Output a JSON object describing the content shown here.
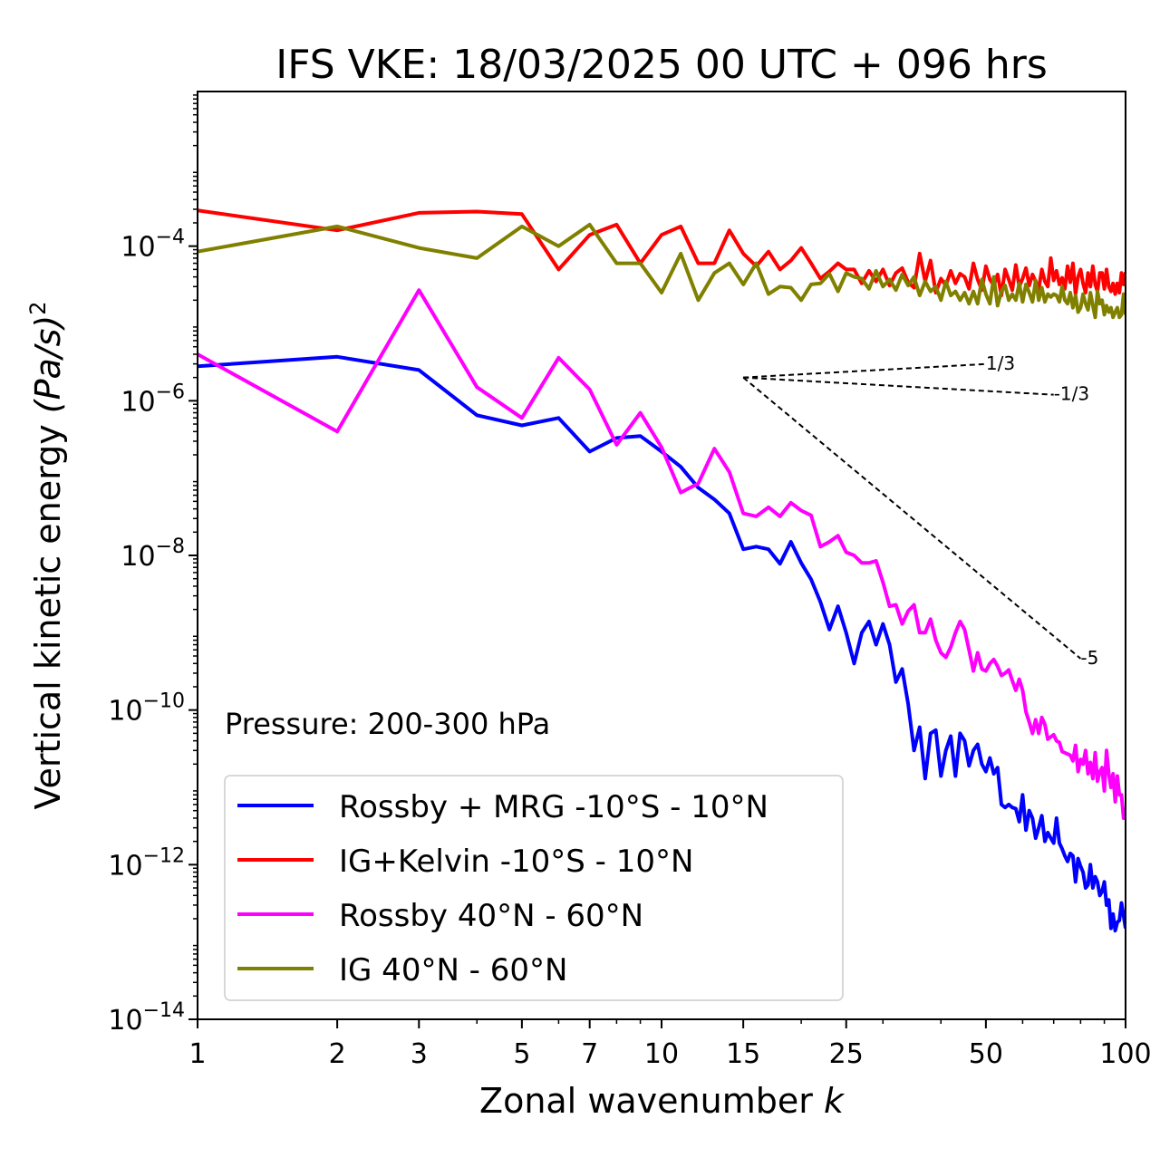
{
  "chart_data": {
    "type": "line",
    "title": "IFS VKE: 18/03/2025 00 UTC + 096 hrs",
    "xlabel": "Zonal wavenumber",
    "xlabel_symbol": "k",
    "ylabel": "Vertical kinetic energy",
    "ylabel_unit": "(Pa/s)",
    "ylabel_exponent": "2",
    "xscale": "log",
    "yscale": "log",
    "xlim": [
      1,
      100
    ],
    "ylim": [
      1e-14,
      0.01
    ],
    "x_ticks": [
      1,
      2,
      3,
      5,
      7,
      10,
      15,
      25,
      50,
      100
    ],
    "x_tick_labels": [
      "1",
      "2",
      "3",
      "5",
      "7",
      "10",
      "15",
      "25",
      "50",
      "100"
    ],
    "y_ticks": [
      -14,
      -12,
      -10,
      -8,
      -6,
      -4
    ],
    "y_tick_base": "10",
    "y_tick_exponents": [
      "−14",
      "−12",
      "−10",
      "−8",
      "−6",
      "−4"
    ],
    "grid": false,
    "legend_position": "lower-left",
    "annotation": "Pressure: 200-300 hPa",
    "reference_slopes": [
      {
        "label": "1/3",
        "slope": 0.3333,
        "x_start": 15,
        "x_end": 50,
        "y_start": 2e-06
      },
      {
        "label": "-1/3",
        "slope": -0.3333,
        "x_start": 15,
        "x_end": 70,
        "y_start": 2e-06
      },
      {
        "label": "-5",
        "slope": -5,
        "x_start": 15,
        "x_end": 80,
        "y_start": 2e-06
      }
    ],
    "series": [
      {
        "name": "Rossby + MRG -10°S - 10°N",
        "color": "#0000ff",
        "x": [
          1,
          2,
          3,
          4,
          5,
          6,
          7,
          8,
          9,
          10,
          11,
          12,
          13,
          14,
          15,
          16,
          17,
          18,
          19,
          20,
          21,
          22,
          23,
          24,
          25,
          26,
          27,
          28,
          29,
          30,
          31,
          32,
          33,
          34,
          35,
          36,
          37,
          38,
          39,
          40,
          41,
          42,
          43,
          44,
          45,
          46,
          47,
          48,
          49,
          50,
          51,
          52,
          53,
          54,
          55,
          56,
          57,
          58,
          59,
          60,
          61,
          62,
          63,
          64,
          65,
          66,
          67,
          68,
          69,
          70,
          71,
          72,
          73,
          74,
          75,
          76,
          77,
          78,
          79,
          80,
          81,
          82,
          83,
          84,
          85,
          86,
          87,
          88,
          89,
          90,
          91,
          92,
          93,
          94,
          95,
          96,
          97,
          98,
          99,
          100
        ],
        "y": [
          2.8e-06,
          3.7e-06,
          2.5e-06,
          6.5e-07,
          4.8e-07,
          6e-07,
          2.2e-07,
          3.3e-07,
          3.5e-07,
          2.2e-07,
          1.4e-07,
          7.5e-08,
          5.3e-08,
          3.5e-08,
          1.2e-08,
          1.3e-08,
          1.2e-08,
          7.8e-09,
          1.5e-08,
          8e-09,
          4.9e-09,
          2.5e-09,
          1.1e-09,
          2.2e-09,
          1e-09,
          4e-10,
          1e-09,
          1.4e-09,
          7e-10,
          1.3e-09,
          7e-10,
          2.3e-10,
          3.4e-10,
          1.2e-10,
          3e-11,
          6e-11,
          1.3e-11,
          5e-11,
          5.5e-11,
          1.4e-11,
          3e-11,
          4.6e-11,
          1.4e-11,
          5e-11,
          4e-11,
          1.9e-11,
          3e-11,
          3.6e-11,
          2e-11,
          1.6e-11,
          2.4e-11,
          1.5e-11,
          1.8e-11,
          6e-12,
          5.5e-12,
          6e-12,
          5.5e-12,
          5.3e-12,
          3.6e-12,
          8e-12,
          2.8e-12,
          5e-12,
          4e-12,
          2.2e-12,
          3e-12,
          4.3e-12,
          2e-12,
          2.6e-12,
          2.2e-12,
          1.9e-12,
          4e-12,
          1.9e-12,
          1.6e-12,
          1.3e-12,
          1.1e-12,
          1.4e-12,
          1.3e-12,
          6e-13,
          1.2e-12,
          9.5e-13,
          8e-13,
          5e-13,
          5.5e-13,
          1e-12,
          5e-13,
          7e-13,
          6e-13,
          4e-13,
          4.5e-13,
          6e-13,
          3e-13,
          3.5e-13,
          1.5e-13,
          2.3e-13,
          1.4e-13,
          1.8e-13,
          1.9e-13,
          3.2e-13,
          2.2e-13,
          1.5e-13
        ]
      },
      {
        "name": "IG+Kelvin -10°S - 10°N",
        "color": "#ff0000",
        "x": [
          1,
          2,
          3,
          4,
          5,
          6,
          7,
          8,
          9,
          10,
          11,
          12,
          13,
          14,
          15,
          16,
          17,
          18,
          19,
          20,
          21,
          22,
          23,
          24,
          25,
          26,
          27,
          28,
          29,
          30,
          31,
          32,
          33,
          34,
          35,
          36,
          37,
          38,
          39,
          40,
          41,
          42,
          43,
          44,
          45,
          46,
          47,
          48,
          49,
          50,
          51,
          52,
          53,
          54,
          55,
          56,
          57,
          58,
          59,
          60,
          61,
          62,
          63,
          64,
          65,
          66,
          67,
          68,
          69,
          70,
          71,
          72,
          73,
          74,
          75,
          76,
          77,
          78,
          79,
          80,
          81,
          82,
          83,
          84,
          85,
          86,
          87,
          88,
          89,
          90,
          91,
          92,
          93,
          94,
          95,
          96,
          97,
          98,
          99,
          100
        ],
        "y": [
          0.00029,
          0.00016,
          0.00027,
          0.00028,
          0.00026,
          5e-05,
          0.00014,
          0.00019,
          6e-05,
          0.00014,
          0.00018,
          6e-05,
          6e-05,
          0.00016,
          8e-05,
          5.5e-05,
          8.5e-05,
          5e-05,
          6.5e-05,
          9.5e-05,
          6e-05,
          3.8e-05,
          4.7e-05,
          6e-05,
          5e-05,
          5e-05,
          3.3e-05,
          4.8e-05,
          3.5e-05,
          5e-05,
          3.1e-05,
          4.5e-05,
          5.2e-05,
          3.4e-05,
          2.9e-05,
          8e-05,
          3.5e-05,
          6.5e-05,
          2.5e-05,
          3.8e-05,
          3.1e-05,
          4.8e-05,
          3.3e-05,
          4.4e-05,
          4e-05,
          2.8e-05,
          6e-05,
          3.7e-05,
          2.7e-05,
          5.5e-05,
          3.7e-05,
          3.1e-05,
          4.3e-05,
          2.3e-05,
          5e-05,
          3.7e-05,
          2.7e-05,
          5.7e-05,
          3e-05,
          3.8e-05,
          5.2e-05,
          3.1e-05,
          4.3e-05,
          3.5e-05,
          2.8e-05,
          5e-05,
          3.5e-05,
          3e-05,
          7e-05,
          3.6e-05,
          4.8e-05,
          3.2e-05,
          3.9e-05,
          2.8e-05,
          5.5e-05,
          3.4e-05,
          6e-05,
          2.4e-05,
          4e-05,
          5e-05,
          3.3e-05,
          2.5e-05,
          4.5e-05,
          3e-05,
          5.5e-05,
          3.2e-05,
          2.6e-05,
          4.5e-05,
          4.5e-05,
          2.8e-05,
          5e-05,
          3e-05,
          2.6e-05,
          3.3e-05,
          2.4e-05,
          3.3e-05,
          2.5e-05,
          4.5e-05,
          3.2e-05,
          4.6e-05
        ]
      },
      {
        "name": "Rossby 40°N - 60°N",
        "color": "#ff00ff",
        "x": [
          1,
          2,
          3,
          4,
          5,
          6,
          7,
          8,
          9,
          10,
          11,
          12,
          13,
          14,
          15,
          16,
          17,
          18,
          19,
          20,
          21,
          22,
          23,
          24,
          25,
          26,
          27,
          28,
          29,
          30,
          31,
          32,
          33,
          34,
          35,
          36,
          37,
          38,
          39,
          40,
          41,
          42,
          43,
          44,
          45,
          46,
          47,
          48,
          49,
          50,
          51,
          52,
          53,
          54,
          55,
          56,
          57,
          58,
          59,
          60,
          61,
          62,
          63,
          64,
          65,
          66,
          67,
          68,
          69,
          70,
          71,
          72,
          73,
          74,
          75,
          76,
          77,
          78,
          79,
          80,
          81,
          82,
          83,
          84,
          85,
          86,
          87,
          88,
          89,
          90,
          91,
          92,
          93,
          94,
          95,
          96,
          97,
          98,
          99,
          100
        ],
        "y": [
          4e-06,
          4e-07,
          2.7e-05,
          1.5e-06,
          6e-07,
          3.6e-06,
          1.4e-06,
          2.7e-07,
          7e-07,
          2.5e-07,
          6.5e-08,
          8.5e-08,
          2.4e-07,
          1.2e-07,
          3.5e-08,
          3.2e-08,
          4.2e-08,
          3.2e-08,
          4.8e-08,
          3.8e-08,
          3.3e-08,
          1.3e-08,
          1.5e-08,
          1.8e-08,
          1.1e-08,
          1e-08,
          8e-09,
          8e-09,
          8.5e-09,
          4.5e-09,
          2.2e-09,
          2.3e-09,
          1.3e-09,
          1.9e-09,
          2.3e-09,
          1e-09,
          1e-09,
          1.5e-09,
          8e-10,
          5.5e-10,
          4.8e-10,
          6.5e-10,
          1e-09,
          1.4e-09,
          1.1e-09,
          6e-10,
          3.2e-10,
          5.5e-10,
          3.4e-10,
          3.2e-10,
          4e-10,
          4.5e-10,
          3.7e-10,
          2.8e-10,
          3e-10,
          3.3e-10,
          2.4e-10,
          1.8e-10,
          2.5e-10,
          1.8e-10,
          9.5e-11,
          7e-11,
          5e-11,
          7.5e-11,
          5e-11,
          8e-11,
          6.5e-11,
          4.2e-11,
          4.5e-11,
          4.8e-11,
          4e-11,
          3.8e-11,
          2.9e-11,
          2.8e-11,
          2.7e-11,
          2.6e-11,
          2.2e-11,
          3.5e-11,
          1.6e-11,
          2.3e-11,
          2e-11,
          3e-11,
          1.5e-11,
          2.1e-11,
          1.3e-11,
          2.8e-11,
          1.2e-11,
          1.6e-11,
          1.8e-11,
          9e-12,
          3e-11,
          1.5e-11,
          1e-11,
          1.5e-11,
          6.5e-12,
          1.4e-11,
          8e-12,
          8e-12,
          4e-12,
          5.5e-12
        ]
      },
      {
        "name": "IG 40°N - 60°N",
        "color": "#808000",
        "x": [
          1,
          2,
          3,
          4,
          5,
          6,
          7,
          8,
          9,
          10,
          11,
          12,
          13,
          14,
          15,
          16,
          17,
          18,
          19,
          20,
          21,
          22,
          23,
          24,
          25,
          26,
          27,
          28,
          29,
          30,
          31,
          32,
          33,
          34,
          35,
          36,
          37,
          38,
          39,
          40,
          41,
          42,
          43,
          44,
          45,
          46,
          47,
          48,
          49,
          50,
          51,
          52,
          53,
          54,
          55,
          56,
          57,
          58,
          59,
          60,
          61,
          62,
          63,
          64,
          65,
          66,
          67,
          68,
          69,
          70,
          71,
          72,
          73,
          74,
          75,
          76,
          77,
          78,
          79,
          80,
          81,
          82,
          83,
          84,
          85,
          86,
          87,
          88,
          89,
          90,
          91,
          92,
          93,
          94,
          95,
          96,
          97,
          98,
          99,
          100
        ],
        "y": [
          8.5e-05,
          0.00018,
          9.5e-05,
          7e-05,
          0.00018,
          0.0001,
          0.00019,
          6e-05,
          6e-05,
          2.5e-05,
          8e-05,
          2e-05,
          4.5e-05,
          6e-05,
          3.2e-05,
          6e-05,
          2.4e-05,
          3e-05,
          2.9e-05,
          2e-05,
          3.2e-05,
          3.3e-05,
          4.4e-05,
          2.6e-05,
          4.5e-05,
          4e-05,
          3.8e-05,
          2.8e-05,
          4.8e-05,
          3e-05,
          3.7e-05,
          2.7e-05,
          4.3e-05,
          3.1e-05,
          4e-05,
          2.3e-05,
          3.5e-05,
          2.6e-05,
          3e-05,
          2e-05,
          3.5e-05,
          2.3e-05,
          2.6e-05,
          2e-05,
          2.5e-05,
          1.8e-05,
          2.6e-05,
          1.8e-05,
          3.7e-05,
          2.4e-05,
          1.8e-05,
          4e-05,
          1.7e-05,
          2.6e-05,
          3.1e-05,
          2e-05,
          2.4e-05,
          2e-05,
          3.3e-05,
          1.9e-05,
          3.2e-05,
          2.5e-05,
          1.9e-05,
          3.6e-05,
          2e-05,
          2.9e-05,
          1.9e-05,
          2.4e-05,
          2.2e-05,
          2.4e-05,
          2.3e-05,
          1.9e-05,
          3e-05,
          2e-05,
          1.8e-05,
          2.5e-05,
          1.6e-05,
          2.3e-05,
          1.4e-05,
          1.6e-05,
          2.4e-05,
          1.8e-05,
          1.5e-05,
          2.5e-05,
          1.7e-05,
          1.2e-05,
          2.6e-05,
          1.8e-05,
          2e-05,
          1.3e-05,
          1.7e-05,
          1.4e-05,
          1.6e-05,
          1.2e-05,
          1.4e-05,
          1.6e-05,
          1.2e-05,
          1.3e-05,
          2.4e-05,
          1.3e-05
        ]
      }
    ]
  }
}
